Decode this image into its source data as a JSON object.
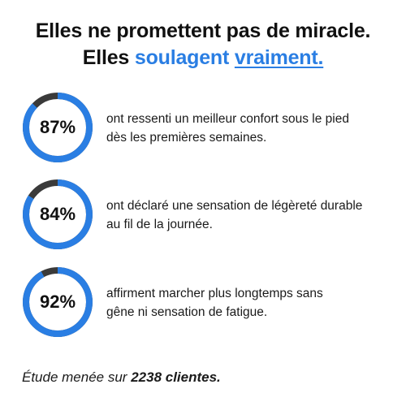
{
  "headline": {
    "line1": "Elles ne promettent pas de miracle.",
    "line2_prefix": "Elles ",
    "line2_accent": "soulagent",
    "line2_space": " ",
    "line2_underlined": "vraiment."
  },
  "colors": {
    "accent": "#2a7ee3",
    "ring_track": "#3a3a3a",
    "text": "#161616"
  },
  "stats": [
    {
      "percent_label": "87%",
      "percent_value": 87,
      "line1": "ont ressenti un meilleur confort sous le pied",
      "line2": "dès les premières semaines."
    },
    {
      "percent_label": "84%",
      "percent_value": 84,
      "line1": "ont déclaré une sensation de légèreté durable",
      "line2": "au fil de la journée."
    },
    {
      "percent_label": "92%",
      "percent_value": 92,
      "line1": "affirment marcher plus longtemps sans",
      "line2": "gêne ni sensation de fatigue."
    }
  ],
  "footnote": {
    "prefix": "Étude menée sur ",
    "bold": "2238 clientes."
  }
}
